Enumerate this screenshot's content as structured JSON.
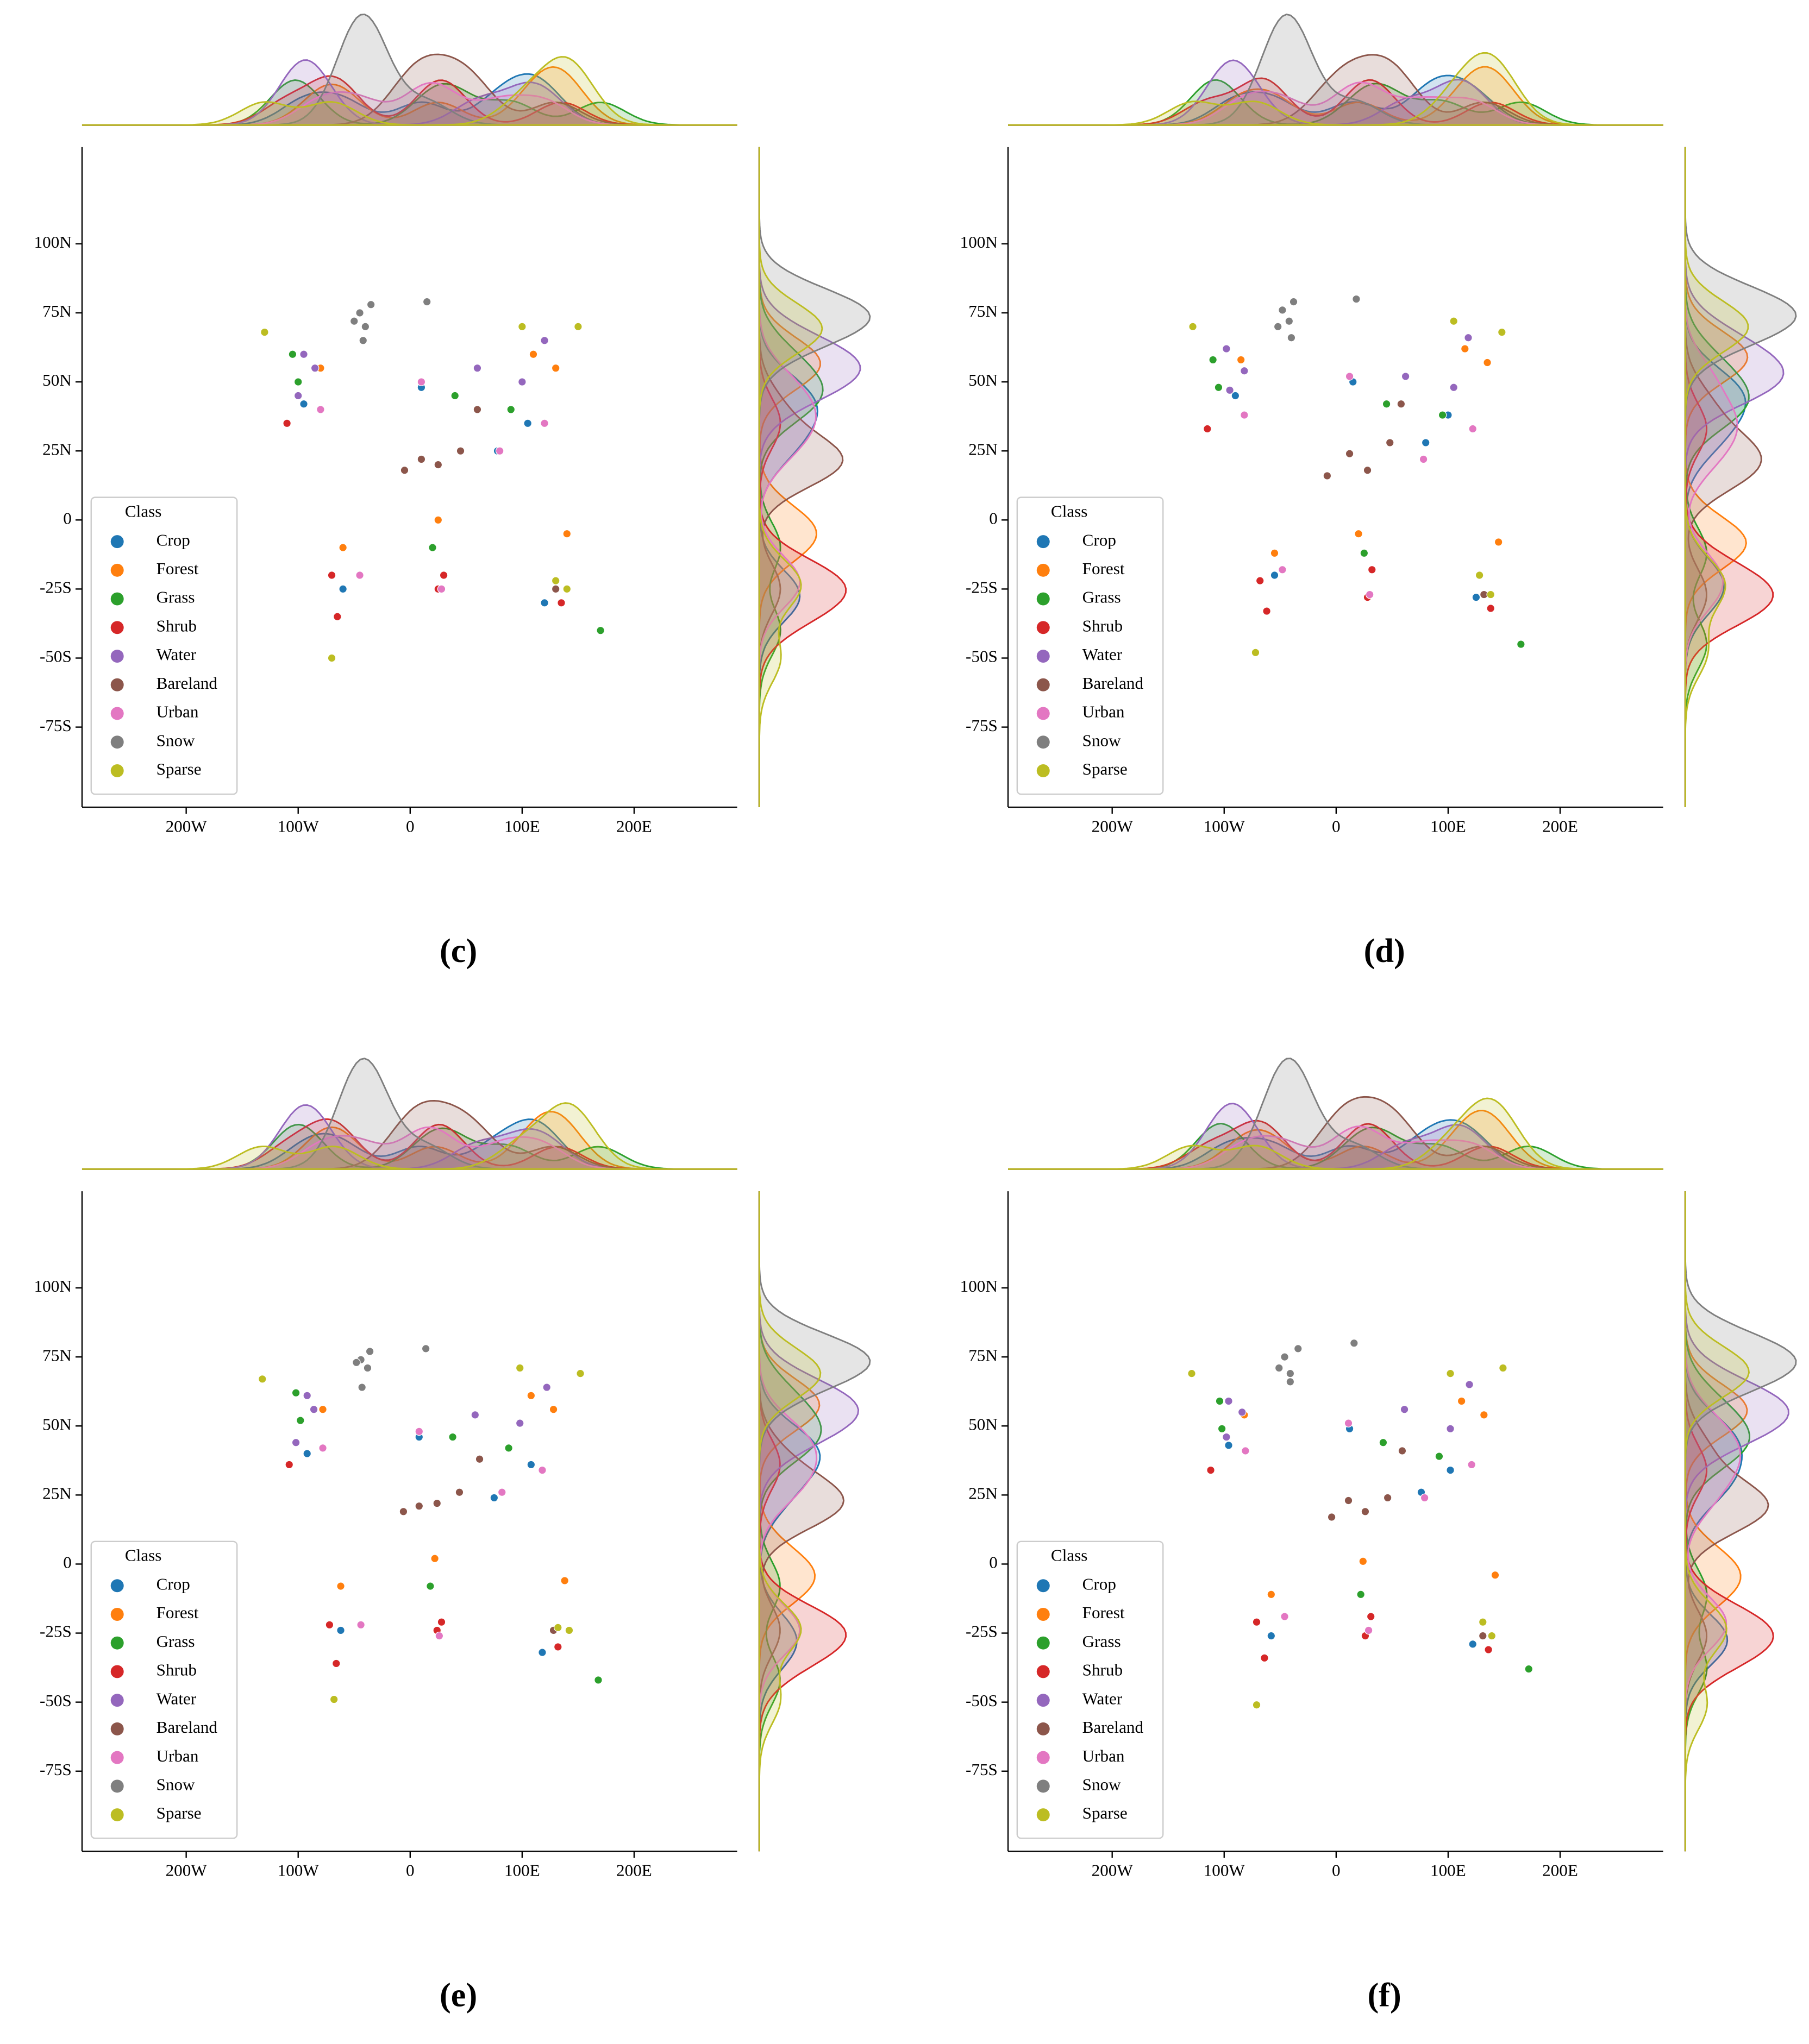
{
  "chart_data": [
    {
      "type": "scatter",
      "panel_label": "(c)",
      "legend_title": "Class",
      "legend": "lower left",
      "xlim": [
        -293,
        292
      ],
      "ylim": [
        -104,
        135
      ],
      "xticks": [
        {
          "value": -200,
          "label": "200W"
        },
        {
          "value": -100,
          "label": "100W"
        },
        0,
        {
          "value": 100,
          "label": "100E"
        },
        {
          "value": 200,
          "label": "200E"
        }
      ],
      "yticks": [
        {
          "value": 100,
          "label": "100N"
        },
        {
          "value": 75,
          "label": "75N"
        },
        {
          "value": 50,
          "label": "50N"
        },
        {
          "value": 25,
          "label": "25N"
        },
        0,
        {
          "value": -25,
          "label": "-25S"
        },
        {
          "value": -50,
          "label": "-50S"
        },
        {
          "value": -75,
          "label": "-75S"
        }
      ],
      "series": [
        {
          "name": "Crop",
          "color": "#1f77b4",
          "x": [
            -95,
            10,
            78,
            105,
            -60,
            120
          ],
          "y": [
            42,
            48,
            25,
            35,
            -25,
            -30
          ]
        },
        {
          "name": "Forest",
          "color": "#ff7f0e",
          "x": [
            -80,
            -60,
            110,
            130,
            25,
            140
          ],
          "y": [
            55,
            -10,
            60,
            55,
            0,
            -5
          ]
        },
        {
          "name": "Grass",
          "color": "#2ca02c",
          "x": [
            -100,
            40,
            90,
            -105,
            20,
            170
          ],
          "y": [
            50,
            45,
            40,
            60,
            -10,
            -40
          ]
        },
        {
          "name": "Shrub",
          "color": "#d62728",
          "x": [
            -110,
            -65,
            25,
            135,
            -70,
            30
          ],
          "y": [
            35,
            -35,
            -25,
            -30,
            -20,
            -20
          ]
        },
        {
          "name": "Water",
          "color": "#9467bd",
          "x": [
            -95,
            -85,
            60,
            100,
            -100,
            120
          ],
          "y": [
            60,
            55,
            55,
            50,
            45,
            65
          ]
        },
        {
          "name": "Bareland",
          "color": "#8c564b",
          "x": [
            10,
            25,
            45,
            60,
            -5,
            130
          ],
          "y": [
            22,
            20,
            25,
            40,
            18,
            -25
          ]
        },
        {
          "name": "Urban",
          "color": "#e377c2",
          "x": [
            -80,
            10,
            80,
            120,
            -45,
            28
          ],
          "y": [
            40,
            50,
            25,
            35,
            -20,
            -25
          ]
        },
        {
          "name": "Snow",
          "color": "#7f7f7f",
          "x": [
            -45,
            -40,
            -35,
            -50,
            -42,
            15
          ],
          "y": [
            75,
            70,
            78,
            72,
            65,
            79
          ]
        },
        {
          "name": "Sparse",
          "color": "#bcbd22",
          "x": [
            -130,
            100,
            140,
            130,
            -70,
            150
          ],
          "y": [
            68,
            70,
            -25,
            -22,
            -50,
            70
          ]
        }
      ]
    },
    {
      "type": "scatter",
      "panel_label": "(d)",
      "legend_title": "Class",
      "legend": "lower left",
      "xlim": [
        -293,
        292
      ],
      "ylim": [
        -104,
        135
      ],
      "xticks": [
        {
          "value": -200,
          "label": "200W"
        },
        {
          "value": -100,
          "label": "100W"
        },
        0,
        {
          "value": 100,
          "label": "100E"
        },
        {
          "value": 200,
          "label": "200E"
        }
      ],
      "yticks": [
        {
          "value": 100,
          "label": "100N"
        },
        {
          "value": 75,
          "label": "75N"
        },
        {
          "value": 50,
          "label": "50N"
        },
        {
          "value": 25,
          "label": "25N"
        },
        0,
        {
          "value": -25,
          "label": "-25S"
        },
        {
          "value": -50,
          "label": "-50S"
        },
        {
          "value": -75,
          "label": "-75S"
        }
      ],
      "series": [
        {
          "name": "Crop",
          "color": "#1f77b4",
          "x": [
            -90,
            15,
            80,
            100,
            -55,
            125
          ],
          "y": [
            45,
            50,
            28,
            38,
            -20,
            -28
          ]
        },
        {
          "name": "Forest",
          "color": "#ff7f0e",
          "x": [
            -85,
            -55,
            115,
            135,
            20,
            145
          ],
          "y": [
            58,
            -12,
            62,
            57,
            -5,
            -8
          ]
        },
        {
          "name": "Grass",
          "color": "#2ca02c",
          "x": [
            -105,
            45,
            95,
            -110,
            25,
            165
          ],
          "y": [
            48,
            42,
            38,
            58,
            -12,
            -45
          ]
        },
        {
          "name": "Shrub",
          "color": "#d62728",
          "x": [
            -115,
            -62,
            28,
            138,
            -68,
            32
          ],
          "y": [
            33,
            -33,
            -28,
            -32,
            -22,
            -18
          ]
        },
        {
          "name": "Water",
          "color": "#9467bd",
          "x": [
            -98,
            -82,
            62,
            105,
            -95,
            118
          ],
          "y": [
            62,
            54,
            52,
            48,
            47,
            66
          ]
        },
        {
          "name": "Bareland",
          "color": "#8c564b",
          "x": [
            12,
            28,
            48,
            58,
            -8,
            132
          ],
          "y": [
            24,
            18,
            28,
            42,
            16,
            -27
          ]
        },
        {
          "name": "Urban",
          "color": "#e377c2",
          "x": [
            -82,
            12,
            78,
            122,
            -48,
            30
          ],
          "y": [
            38,
            52,
            22,
            33,
            -18,
            -27
          ]
        },
        {
          "name": "Snow",
          "color": "#7f7f7f",
          "x": [
            -48,
            -42,
            -38,
            -52,
            -40,
            18
          ],
          "y": [
            76,
            72,
            79,
            70,
            66,
            80
          ]
        },
        {
          "name": "Sparse",
          "color": "#bcbd22",
          "x": [
            -128,
            105,
            138,
            128,
            -72,
            148
          ],
          "y": [
            70,
            72,
            -27,
            -20,
            -48,
            68
          ]
        }
      ]
    },
    {
      "type": "scatter",
      "panel_label": "(e)",
      "legend_title": "Class",
      "legend": "lower left",
      "xlim": [
        -293,
        292
      ],
      "ylim": [
        -104,
        135
      ],
      "xticks": [
        {
          "value": -200,
          "label": "200W"
        },
        {
          "value": -100,
          "label": "100W"
        },
        0,
        {
          "value": 100,
          "label": "100E"
        },
        {
          "value": 200,
          "label": "200E"
        }
      ],
      "yticks": [
        {
          "value": 100,
          "label": "100N"
        },
        {
          "value": 75,
          "label": "75N"
        },
        {
          "value": 50,
          "label": "50N"
        },
        {
          "value": 25,
          "label": "25N"
        },
        0,
        {
          "value": -25,
          "label": "-25S"
        },
        {
          "value": -50,
          "label": "-50S"
        },
        {
          "value": -75,
          "label": "-75S"
        }
      ],
      "series": [
        {
          "name": "Crop",
          "color": "#1f77b4",
          "x": [
            -92,
            8,
            75,
            108,
            -62,
            118
          ],
          "y": [
            40,
            46,
            24,
            36,
            -24,
            -32
          ]
        },
        {
          "name": "Forest",
          "color": "#ff7f0e",
          "x": [
            -78,
            -62,
            108,
            128,
            22,
            138
          ],
          "y": [
            56,
            -8,
            61,
            56,
            2,
            -6
          ]
        },
        {
          "name": "Grass",
          "color": "#2ca02c",
          "x": [
            -98,
            38,
            88,
            -102,
            18,
            168
          ],
          "y": [
            52,
            46,
            42,
            62,
            -8,
            -42
          ]
        },
        {
          "name": "Shrub",
          "color": "#d62728",
          "x": [
            -108,
            -66,
            24,
            132,
            -72,
            28
          ],
          "y": [
            36,
            -36,
            -24,
            -30,
            -22,
            -21
          ]
        },
        {
          "name": "Water",
          "color": "#9467bd",
          "x": [
            -92,
            -86,
            58,
            98,
            -102,
            122
          ],
          "y": [
            61,
            56,
            54,
            51,
            44,
            64
          ]
        },
        {
          "name": "Bareland",
          "color": "#8c564b",
          "x": [
            8,
            24,
            44,
            62,
            -6,
            128
          ],
          "y": [
            21,
            22,
            26,
            38,
            19,
            -24
          ]
        },
        {
          "name": "Urban",
          "color": "#e377c2",
          "x": [
            -78,
            8,
            82,
            118,
            -44,
            26
          ],
          "y": [
            42,
            48,
            26,
            34,
            -22,
            -26
          ]
        },
        {
          "name": "Snow",
          "color": "#7f7f7f",
          "x": [
            -44,
            -38,
            -36,
            -48,
            -43,
            14
          ],
          "y": [
            74,
            71,
            77,
            73,
            64,
            78
          ]
        },
        {
          "name": "Sparse",
          "color": "#bcbd22",
          "x": [
            -132,
            98,
            142,
            132,
            -68,
            152
          ],
          "y": [
            67,
            71,
            -24,
            -23,
            -49,
            69
          ]
        }
      ]
    },
    {
      "type": "scatter",
      "panel_label": "(f)",
      "legend_title": "Class",
      "legend": "lower left",
      "xlim": [
        -293,
        292
      ],
      "ylim": [
        -104,
        135
      ],
      "xticks": [
        {
          "value": -200,
          "label": "200W"
        },
        {
          "value": -100,
          "label": "100W"
        },
        0,
        {
          "value": 100,
          "label": "100E"
        },
        {
          "value": 200,
          "label": "200E"
        }
      ],
      "yticks": [
        {
          "value": 100,
          "label": "100N"
        },
        {
          "value": 75,
          "label": "75N"
        },
        {
          "value": 50,
          "label": "50N"
        },
        {
          "value": 25,
          "label": "25N"
        },
        0,
        {
          "value": -25,
          "label": "-25S"
        },
        {
          "value": -50,
          "label": "-50S"
        },
        {
          "value": -75,
          "label": "-75S"
        }
      ],
      "series": [
        {
          "name": "Crop",
          "color": "#1f77b4",
          "x": [
            -96,
            12,
            76,
            102,
            -58,
            122
          ],
          "y": [
            43,
            49,
            26,
            34,
            -26,
            -29
          ]
        },
        {
          "name": "Forest",
          "color": "#ff7f0e",
          "x": [
            -82,
            -58,
            112,
            132,
            24,
            142
          ],
          "y": [
            54,
            -11,
            59,
            54,
            1,
            -4
          ]
        },
        {
          "name": "Grass",
          "color": "#2ca02c",
          "x": [
            -102,
            42,
            92,
            -104,
            22,
            172
          ],
          "y": [
            49,
            44,
            39,
            59,
            -11,
            -38
          ]
        },
        {
          "name": "Shrub",
          "color": "#d62728",
          "x": [
            -112,
            -64,
            26,
            136,
            -71,
            31
          ],
          "y": [
            34,
            -34,
            -26,
            -31,
            -21,
            -19
          ]
        },
        {
          "name": "Water",
          "color": "#9467bd",
          "x": [
            -96,
            -84,
            61,
            102,
            -98,
            119
          ],
          "y": [
            59,
            55,
            56,
            49,
            46,
            65
          ]
        },
        {
          "name": "Bareland",
          "color": "#8c564b",
          "x": [
            11,
            26,
            46,
            59,
            -4,
            131
          ],
          "y": [
            23,
            19,
            24,
            41,
            17,
            -26
          ]
        },
        {
          "name": "Urban",
          "color": "#e377c2",
          "x": [
            -81,
            11,
            79,
            121,
            -46,
            29
          ],
          "y": [
            41,
            51,
            24,
            36,
            -19,
            -24
          ]
        },
        {
          "name": "Snow",
          "color": "#7f7f7f",
          "x": [
            -46,
            -41,
            -34,
            -51,
            -41,
            16
          ],
          "y": [
            75,
            69,
            78,
            71,
            66,
            80
          ]
        },
        {
          "name": "Sparse",
          "color": "#bcbd22",
          "x": [
            -129,
            102,
            139,
            131,
            -71,
            149
          ],
          "y": [
            69,
            69,
            -26,
            -21,
            -51,
            71
          ]
        }
      ]
    }
  ]
}
